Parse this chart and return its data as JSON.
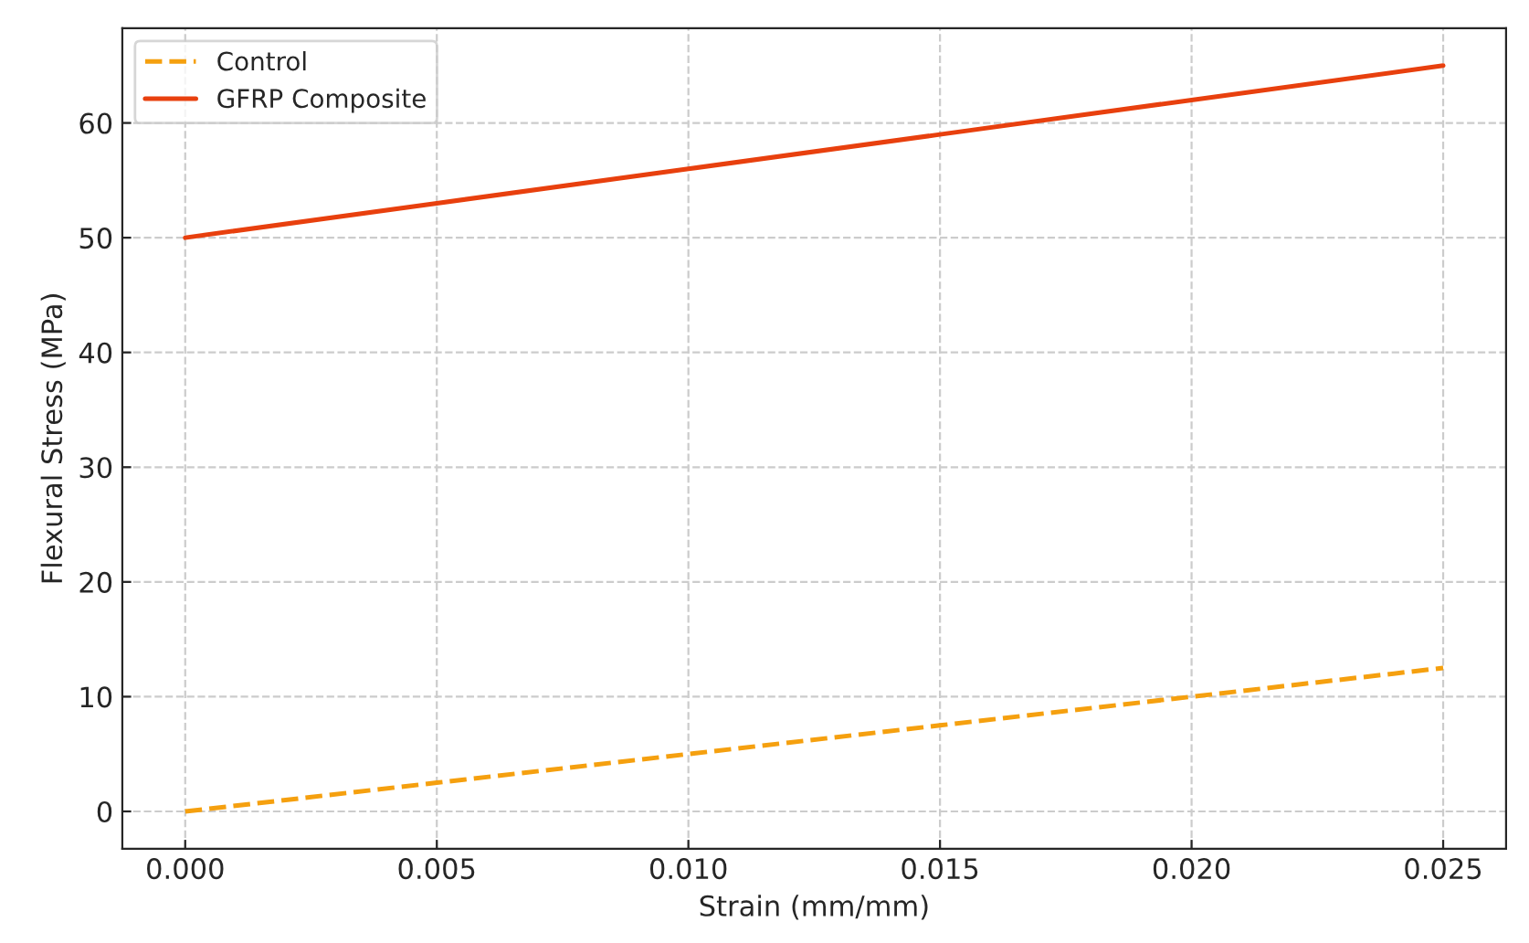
{
  "chart_data": {
    "type": "line",
    "xlabel": "Strain (mm/mm)",
    "ylabel": "Flexural Stress (MPa)",
    "x": [
      0,
      0.005,
      0.01,
      0.015,
      0.02,
      0.025
    ],
    "series": [
      {
        "name": "Control",
        "color": "#f5a00f",
        "values": [
          0,
          2.5,
          5,
          7.5,
          10,
          12.5
        ],
        "line_style": "dashed"
      },
      {
        "name": "GFRP Composite",
        "color": "#e8400e",
        "values": [
          50,
          53,
          56,
          59,
          62,
          65
        ],
        "line_style": "solid"
      }
    ],
    "xlim": [
      -0.00125,
      0.02625
    ],
    "ylim": [
      -3.25,
      68.25
    ],
    "xticks": [
      {
        "value": 0,
        "label": "0.000"
      },
      {
        "value": 0.005,
        "label": "0.005"
      },
      {
        "value": 0.01,
        "label": "0.010"
      },
      {
        "value": 0.015,
        "label": "0.015"
      },
      {
        "value": 0.02,
        "label": "0.020"
      },
      {
        "value": 0.025,
        "label": "0.025"
      }
    ],
    "yticks": [
      0,
      10,
      20,
      30,
      40,
      50,
      60
    ],
    "grid": true,
    "legend": "top left",
    "marker": "none"
  }
}
